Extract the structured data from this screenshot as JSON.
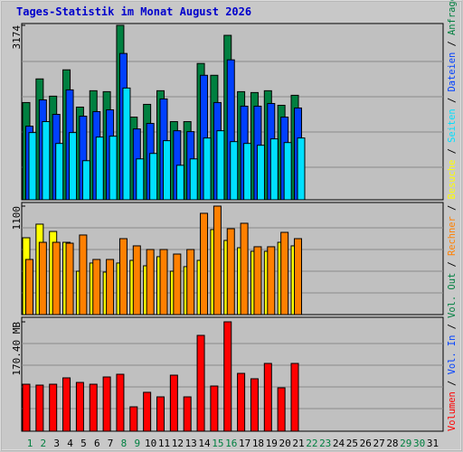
{
  "chart_data": [
    {
      "type": "bar",
      "title": "Tages-Statistik im Monat August 2026",
      "ylim": [
        0,
        3174
      ],
      "yticks": [
        3174
      ],
      "series": [
        {
          "name": "Anfragen",
          "color": "#008040",
          "values": [
            1769,
            2199,
            1885,
            2364,
            1686,
            1984,
            1967,
            3174,
            1504,
            1736,
            1984,
            1422,
            1422,
            2480,
            2265,
            2992,
            1967,
            1951,
            1984,
            1719,
            1901,
            null,
            null,
            null,
            null,
            null,
            null,
            null,
            null,
            null,
            null
          ]
        },
        {
          "name": "Dateien",
          "color": "#0040ff",
          "values": [
            1339,
            1818,
            1554,
            2000,
            1521,
            1604,
            1637,
            2662,
            1289,
            1389,
            1835,
            1256,
            1240,
            2265,
            1769,
            2546,
            1703,
            1703,
            1752,
            1504,
            1670,
            null,
            null,
            null,
            null,
            null,
            null,
            null,
            null,
            null,
            null
          ]
        },
        {
          "name": "Seiten",
          "color": "#00e0ff",
          "values": [
            1223,
            1422,
            1025,
            1223,
            711,
            1141,
            1157,
            2033,
            744,
            843,
            1075,
            628,
            744,
            1124,
            1256,
            1058,
            1025,
            992,
            1108,
            1041,
            1124,
            null,
            null,
            null,
            null,
            null,
            null,
            null,
            null,
            null,
            null
          ]
        }
      ]
    },
    {
      "type": "bar",
      "ylim": [
        0,
        1100
      ],
      "yticks": [
        1100
      ],
      "series": [
        {
          "name": "Besuche",
          "color": "#ffff00",
          "values": [
            779,
            917,
            843,
            733,
            440,
            523,
            431,
            523,
            550,
            495,
            587,
            440,
            486,
            550,
            862,
            752,
            678,
            642,
            642,
            733,
            697,
            null,
            null,
            null,
            null,
            null,
            null,
            null,
            null,
            null,
            null
          ]
        },
        {
          "name": "Rechner",
          "color": "#ff8000",
          "values": [
            559,
            733,
            733,
            724,
            807,
            559,
            559,
            770,
            697,
            660,
            660,
            614,
            660,
            1027,
            1100,
            871,
            926,
            688,
            688,
            834,
            770,
            null,
            null,
            null,
            null,
            null,
            null,
            null,
            null,
            null,
            null
          ]
        }
      ]
    },
    {
      "type": "bar",
      "ylim": [
        0,
        170.4
      ],
      "yticks": [
        {
          "value": 170.4,
          "label": "170.40 MB"
        }
      ],
      "categories": [
        "1",
        "2",
        "3",
        "4",
        "5",
        "6",
        "7",
        "8",
        "9",
        "10",
        "11",
        "12",
        "13",
        "14",
        "15",
        "16",
        "17",
        "18",
        "19",
        "20",
        "21",
        "22",
        "23",
        "24",
        "25",
        "26",
        "27",
        "28",
        "29",
        "30",
        "31"
      ],
      "category_colors": [
        "#008040",
        "#008040",
        "#000000",
        "#000000",
        "#000000",
        "#000000",
        "#000000",
        "#008040",
        "#008040",
        "#000000",
        "#000000",
        "#000000",
        "#000000",
        "#000000",
        "#008040",
        "#008040",
        "#000000",
        "#000000",
        "#000000",
        "#000000",
        "#000000",
        "#008040",
        "#008040",
        "#000000",
        "#000000",
        "#000000",
        "#000000",
        "#000000",
        "#008040",
        "#008040",
        "#000000"
      ],
      "legend_separator": " / ",
      "series": [
        {
          "name": "Vol. Out",
          "color": "#008040",
          "values": [
            null,
            null,
            null,
            null,
            null,
            null,
            null,
            null,
            null,
            null,
            null,
            null,
            null,
            null,
            null,
            null,
            null,
            null,
            null,
            null,
            null,
            null,
            null,
            null,
            null,
            null,
            null,
            null,
            null,
            null,
            null
          ]
        },
        {
          "name": "Vol. In",
          "color": "#0040ff",
          "values": [
            null,
            null,
            null,
            null,
            null,
            null,
            null,
            null,
            null,
            null,
            null,
            null,
            null,
            null,
            null,
            null,
            null,
            null,
            null,
            null,
            null,
            null,
            null,
            null,
            null,
            null,
            null,
            null,
            null,
            null,
            null
          ]
        },
        {
          "name": "Volumen",
          "color": "#ff0000",
          "values": [
            73.2,
            71.8,
            73.2,
            83.1,
            76.0,
            73.2,
            84.5,
            88.7,
            38.0,
            60.6,
            53.5,
            87.3,
            53.5,
            149.3,
            70.4,
            170.4,
            90.1,
            81.7,
            105.6,
            67.6,
            105.6,
            null,
            null,
            null,
            null,
            null,
            null,
            null,
            null,
            null,
            null
          ]
        }
      ]
    }
  ]
}
